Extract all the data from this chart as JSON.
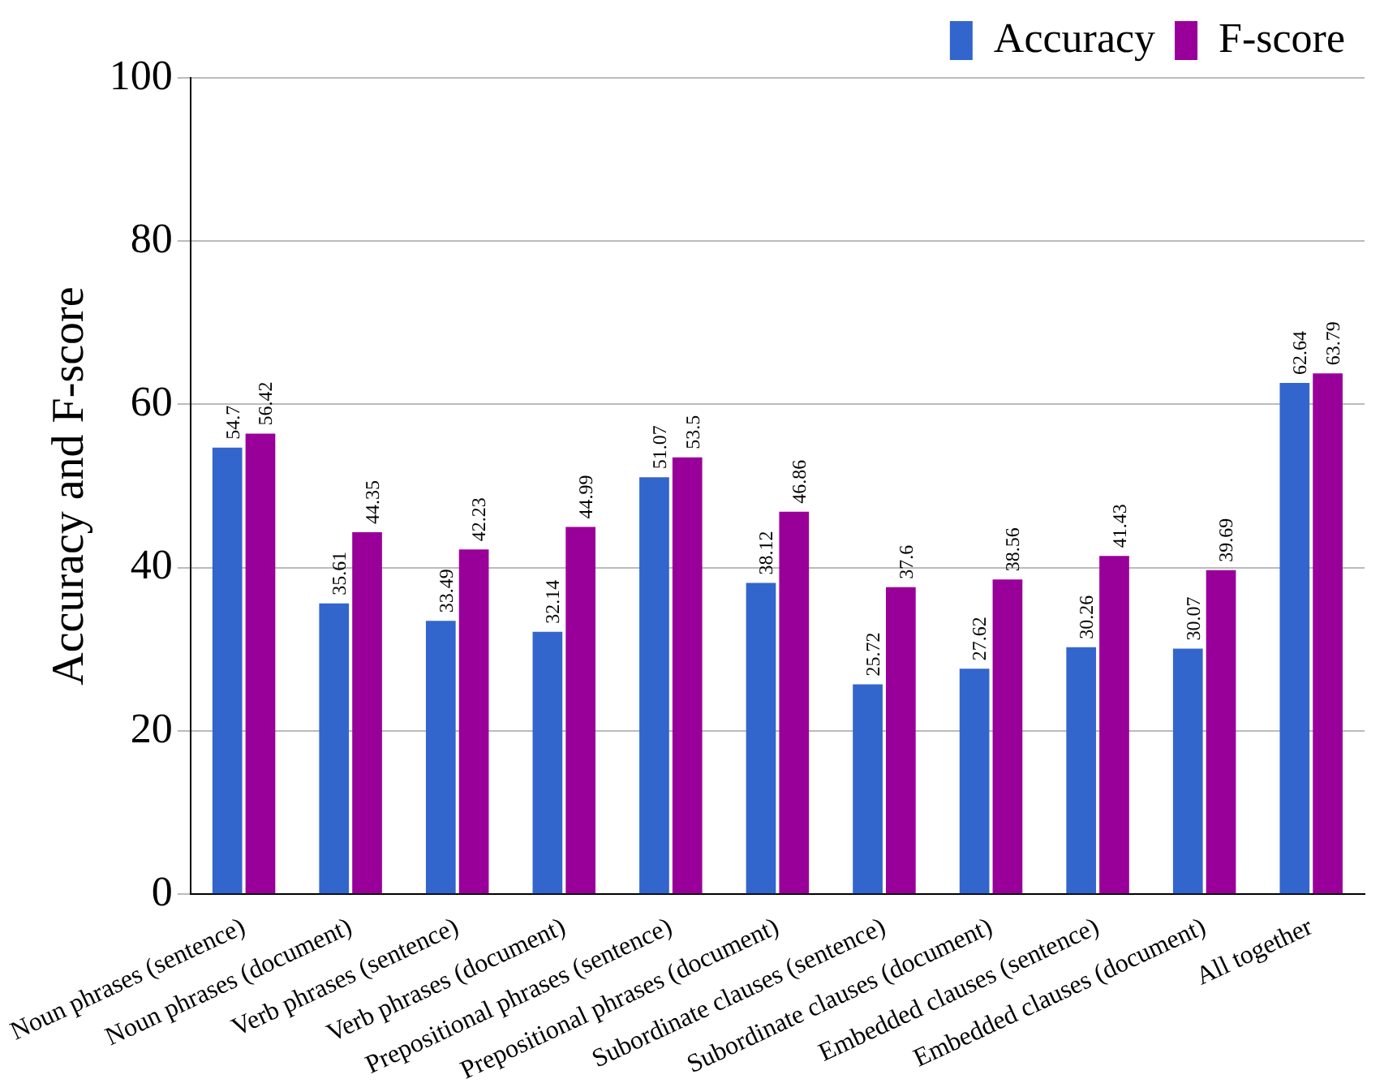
{
  "chart_data": {
    "type": "bar",
    "ylabel": "Accuracy and F-score",
    "categories": [
      "Noun phrases (sentence)",
      "Noun phrases (document)",
      "Verb phrases (sentence)",
      "Verb phrases (document)",
      "Prepositional phrases (sentence)",
      "Prepositional phrases (document)",
      "Subordinate clauses (sentence)",
      "Subordinate clauses (document)",
      "Embedded clauses (sentence)",
      "Embedded clauses (document)",
      "All together"
    ],
    "series": [
      {
        "name": "Accuracy",
        "color": "#3366cc",
        "values": [
          54.7,
          35.61,
          33.49,
          32.14,
          51.07,
          38.12,
          25.72,
          27.62,
          30.26,
          30.07,
          62.64
        ]
      },
      {
        "name": "F-score",
        "color": "#990099",
        "values": [
          56.42,
          44.35,
          42.23,
          44.99,
          53.5,
          46.86,
          37.6,
          38.56,
          41.43,
          39.69,
          63.79
        ]
      }
    ],
    "ylim": [
      0,
      100
    ],
    "yticks": [
      0,
      20,
      40,
      60,
      80,
      100
    ],
    "grid": "y",
    "legend": "top right",
    "data_labels": true
  }
}
